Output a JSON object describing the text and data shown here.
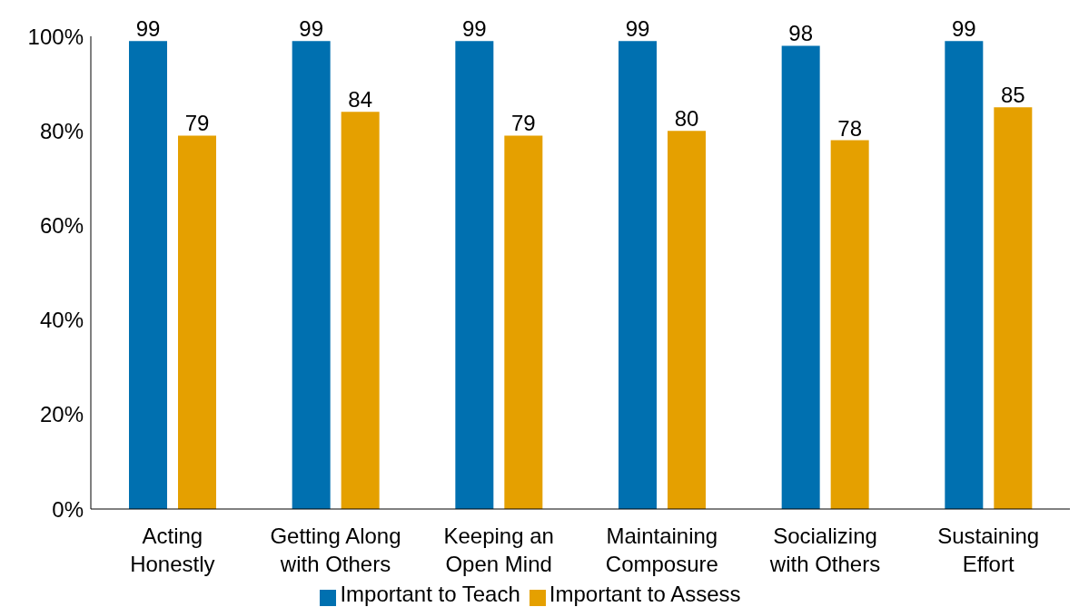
{
  "chart_data": {
    "type": "bar",
    "categories": [
      "Acting Honestly",
      "Getting Along with Others",
      "Keeping an Open Mind",
      "Maintaining Composure",
      "Socializing with Others",
      "Sustaining Effort"
    ],
    "series": [
      {
        "name": "Important to Teach",
        "color": "#0070b0",
        "values": [
          99,
          99,
          99,
          99,
          98,
          99
        ]
      },
      {
        "name": "Important to Assess",
        "color": "#e5a000",
        "values": [
          79,
          84,
          79,
          80,
          78,
          85
        ]
      }
    ],
    "ylim": [
      0,
      100
    ],
    "yticks": [
      {
        "value": 0,
        "label": "0%"
      },
      {
        "value": 20,
        "label": "20%"
      },
      {
        "value": 40,
        "label": "40%"
      },
      {
        "value": 60,
        "label": "60%"
      },
      {
        "value": 80,
        "label": "80%"
      },
      {
        "value": 100,
        "label": "100%"
      }
    ],
    "data_labels": true,
    "legend": "bottom",
    "grid": false
  }
}
